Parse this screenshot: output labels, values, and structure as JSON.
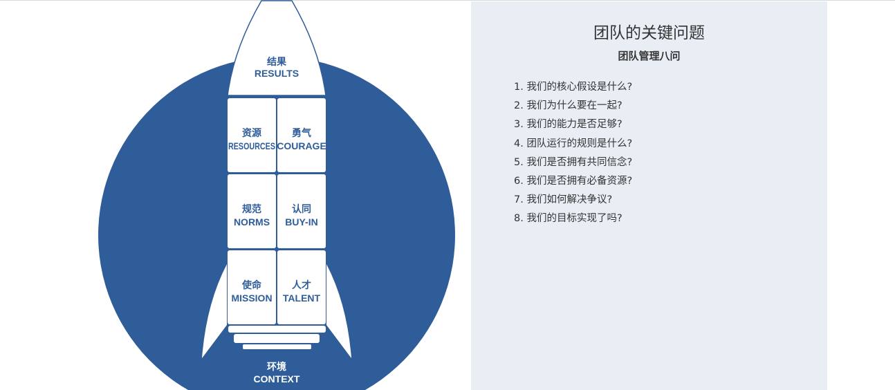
{
  "diagram": {
    "colors": {
      "primary": "#2f5d99",
      "panel_bg": "#e9eef5"
    },
    "nose": {
      "cn": "结果",
      "en": "RESULTS"
    },
    "blocks": [
      {
        "cn": "资源",
        "en": "RESOURCES"
      },
      {
        "cn": "勇气",
        "en": "COURAGE"
      },
      {
        "cn": "规范",
        "en": "NORMS"
      },
      {
        "cn": "认同",
        "en": "BUY-IN"
      },
      {
        "cn": "使命",
        "en": "MISSION"
      },
      {
        "cn": "人才",
        "en": "TALENT"
      }
    ],
    "base": {
      "cn": "环境",
      "en": "CONTEXT"
    }
  },
  "panel": {
    "title": "团队的关键问题",
    "subtitle": "团队管理八问",
    "questions": [
      "1. 我们的核心假设是什么?",
      "2. 我们为什么要在一起?",
      "3. 我们的能力是否足够?",
      "4. 团队运行的规则是什么?",
      "5. 我们是否拥有共同信念?",
      "6. 我们是否拥有必备资源?",
      "7. 我们如何解决争议?",
      "8. 我们的目标实现了吗?"
    ]
  }
}
